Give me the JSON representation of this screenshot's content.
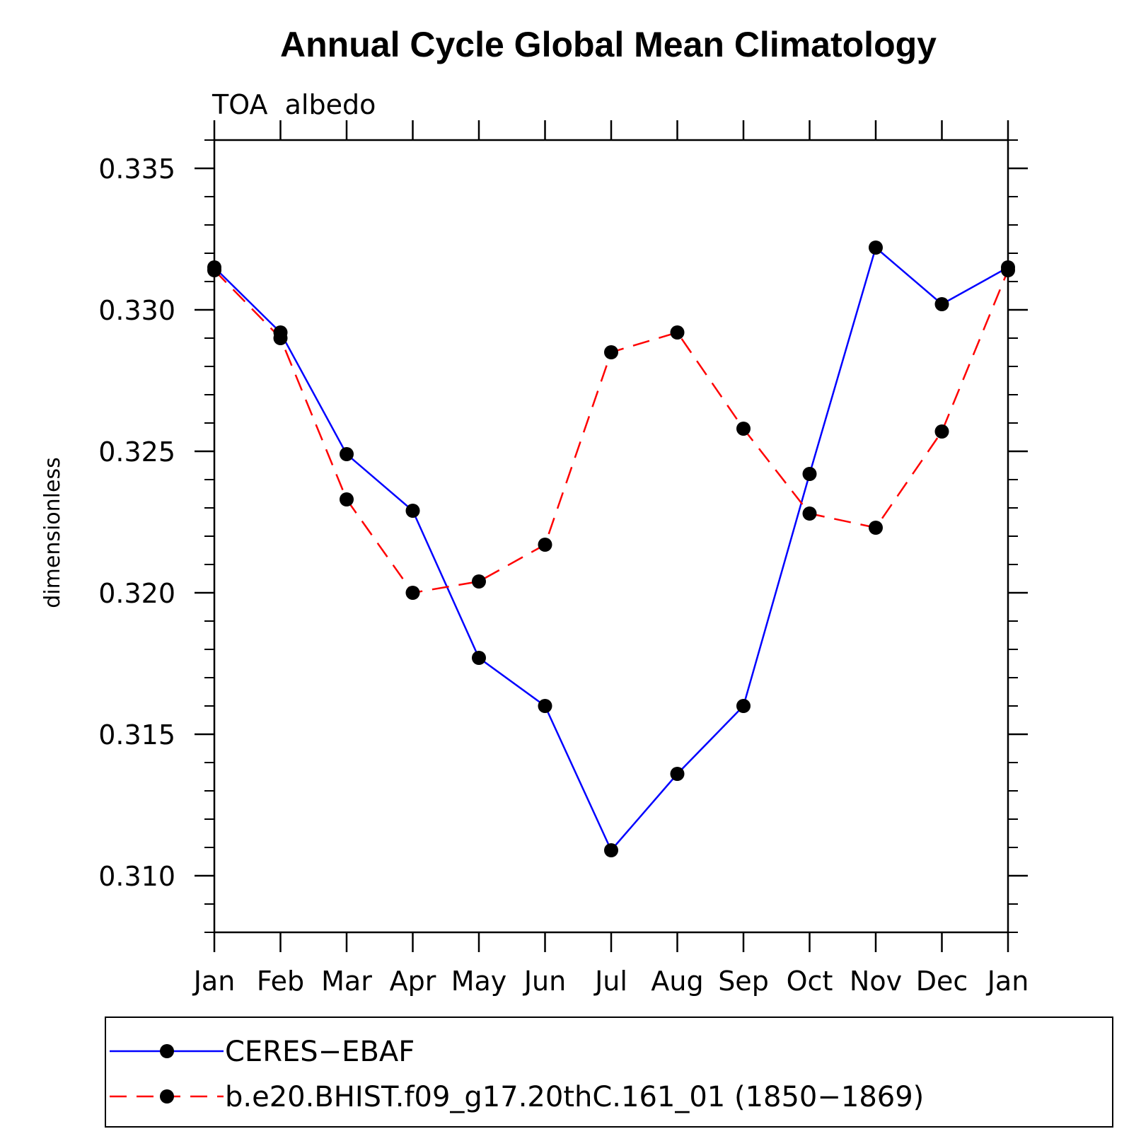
{
  "chart_data": {
    "type": "line",
    "title": "Annual Cycle Global Mean Climatology",
    "subtitle": "TOA  albedo",
    "xlabel": "",
    "ylabel": "dimensionless",
    "categories": [
      "Jan",
      "Feb",
      "Mar",
      "Apr",
      "May",
      "Jun",
      "Jul",
      "Aug",
      "Sep",
      "Oct",
      "Nov",
      "Dec",
      "Jan"
    ],
    "ylim": [
      0.308,
      0.336
    ],
    "yticks": [
      "0.310",
      "0.315",
      "0.320",
      "0.325",
      "0.330",
      "0.335"
    ],
    "ytick_values": [
      0.31,
      0.315,
      0.32,
      0.325,
      0.33,
      0.335
    ],
    "grid": false,
    "legend_position": "bottom",
    "series": [
      {
        "name": "CERES−EBAF",
        "color": "#0000ff",
        "line_style": "solid",
        "marker": "filled-circle",
        "values": [
          0.3315,
          0.3292,
          0.3249,
          0.3229,
          0.3177,
          0.316,
          0.3109,
          0.3136,
          0.316,
          0.3242,
          0.3322,
          0.3302,
          0.3315
        ]
      },
      {
        "name": "b.e20.BHIST.f09_g17.20thC.161_01 (1850−1869)",
        "color": "#ff0000",
        "line_style": "dashed",
        "marker": "filled-circle",
        "values": [
          0.3314,
          0.329,
          0.3233,
          0.32,
          0.3204,
          0.3217,
          0.3285,
          0.3292,
          0.3258,
          0.3228,
          0.3223,
          0.3257,
          0.3314
        ]
      }
    ]
  }
}
